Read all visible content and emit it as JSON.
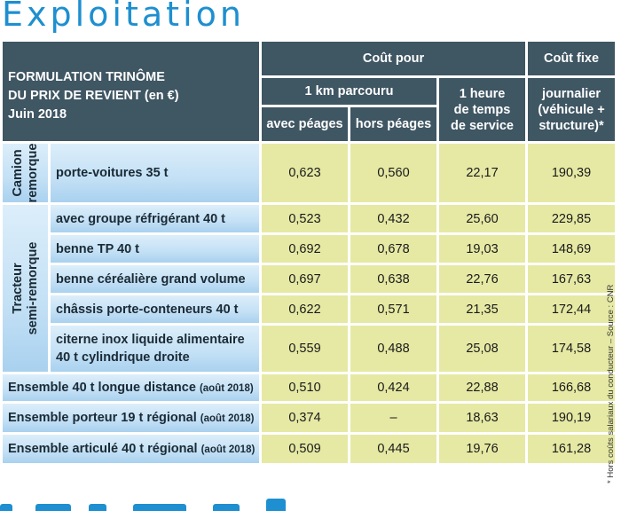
{
  "title": "Exploitation",
  "header": {
    "formulation": [
      "FORMULATION TRINÔME",
      "DU PRIX DE REVIENT (en €)",
      "Juin 2018"
    ],
    "cout_pour": "Coût pour",
    "cout_fixe": "Coût fixe",
    "km_parcouru": "1 km parcouru",
    "heure": [
      "1 heure",
      "de temps",
      "de service"
    ],
    "journalier": [
      "journalier",
      "(véhicule +",
      "structure)*"
    ],
    "avec_peages": "avec péages",
    "hors_peages": "hors péages"
  },
  "groups": {
    "camion": [
      "Camion",
      "remorque"
    ],
    "tracteur": [
      "Tracteur",
      "semi-remorque"
    ]
  },
  "rows": [
    {
      "label": "porte-voitures 35 t",
      "avec": "0,623",
      "hors": "0,560",
      "heure": "22,17",
      "fixe": "190,39"
    },
    {
      "label": "avec groupe réfrigérant 40 t",
      "avec": "0,523",
      "hors": "0,432",
      "heure": "25,60",
      "fixe": "229,85"
    },
    {
      "label": "benne TP 40 t",
      "avec": "0,692",
      "hors": "0,678",
      "heure": "19,03",
      "fixe": "148,69"
    },
    {
      "label": "benne céréalière grand volume",
      "avec": "0,697",
      "hors": "0,638",
      "heure": "22,76",
      "fixe": "167,63"
    },
    {
      "label": "châssis porte-conteneurs 40 t",
      "avec": "0,622",
      "hors": "0,571",
      "heure": "21,35",
      "fixe": "172,44"
    },
    {
      "label": [
        "citerne inox liquide alimentaire",
        "40 t cylindrique droite"
      ],
      "avec": "0,559",
      "hors": "0,488",
      "heure": "25,08",
      "fixe": "174,58"
    },
    {
      "label": "Ensemble 40 t longue distance",
      "note": "(août 2018)",
      "avec": "0,510",
      "hors": "0,424",
      "heure": "22,88",
      "fixe": "166,68"
    },
    {
      "label": "Ensemble porteur 19 t régional",
      "note": "(août 2018)",
      "avec": "0,374",
      "hors": "–",
      "heure": "18,63",
      "fixe": "190,19"
    },
    {
      "label": "Ensemble articulé 40 t régional",
      "note": "(août 2018)",
      "avec": "0,509",
      "hors": "0,445",
      "heure": "19,76",
      "fixe": "161,28"
    }
  ],
  "footnote": "* Hors coûts salariaux du conducteur – Source : CNR",
  "colors": {
    "title": "#1e8fd0",
    "header": "#3f5663",
    "label_bg": "#c3e0f5",
    "value_bg": "#e6e9a4"
  }
}
